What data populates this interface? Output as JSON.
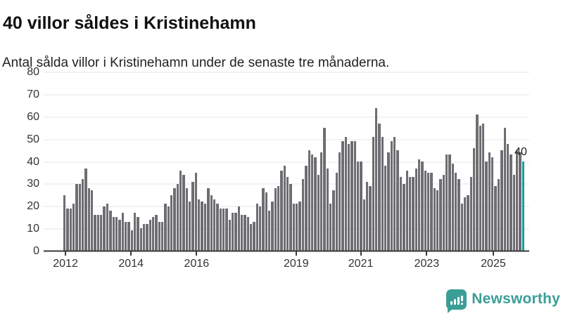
{
  "title": "40 villor såldes i Kristinehamn",
  "subtitle": "Antal sålda villor i Kristinehamn under de senaste tre månaderna.",
  "colors": {
    "bar": "#6d6d72",
    "highlight": "#16a09a",
    "grid": "#e4e4e4",
    "axis": "#3a3a3a",
    "brand": "#3a9e97"
  },
  "branding": {
    "logo_text": "Newsworthy",
    "logo_icon": "bar-chart-speech-bubble-icon"
  },
  "chart_data": {
    "type": "bar",
    "title": "40 villor såldes i Kristinehamn",
    "subtitle": "Antal sålda villor i Kristinehamn under de senaste tre månaderna.",
    "xlabel": "",
    "ylabel": "",
    "ylim": [
      0,
      80
    ],
    "grid": "horizontal",
    "legend": "none",
    "y_ticks": [
      0,
      10,
      20,
      30,
      40,
      50,
      60,
      70,
      80
    ],
    "x_ticks": [
      {
        "label": "2012",
        "pos": 0.045
      },
      {
        "label": "2014",
        "pos": 0.18
      },
      {
        "label": "2016",
        "pos": 0.315
      },
      {
        "label": "2019",
        "pos": 0.52
      },
      {
        "label": "2021",
        "pos": 0.653
      },
      {
        "label": "2023",
        "pos": 0.789
      },
      {
        "label": "2025",
        "pos": 0.926
      }
    ],
    "series_note": "Rolling 3-month count of sold houses, monthly points 2011-12 to 2025, last point highlighted",
    "values": [
      25,
      19,
      19,
      21,
      30,
      30,
      32,
      37,
      28,
      27,
      16,
      16,
      16,
      20,
      21,
      18,
      15,
      15,
      14,
      17,
      13,
      13,
      9,
      17,
      15,
      10,
      12,
      12,
      14,
      15,
      16,
      13,
      13,
      21,
      20,
      25,
      28,
      30,
      36,
      34,
      28,
      22,
      31,
      35,
      23,
      22,
      21,
      28,
      25,
      23,
      21,
      19,
      19,
      19,
      14,
      17,
      17,
      20,
      16,
      16,
      15,
      12,
      13,
      21,
      20,
      28,
      26,
      18,
      22,
      28,
      29,
      36,
      38,
      33,
      30,
      21,
      21,
      22,
      32,
      38,
      45,
      43,
      42,
      34,
      44,
      55,
      37,
      21,
      27,
      35,
      44,
      49,
      51,
      48,
      49,
      49,
      40,
      40,
      23,
      31,
      29,
      51,
      64,
      57,
      51,
      38,
      44,
      49,
      51,
      45,
      33,
      30,
      36,
      33,
      33,
      37,
      41,
      40,
      36,
      35,
      35,
      28,
      27,
      32,
      34,
      43,
      43,
      39,
      35,
      32,
      21,
      24,
      25,
      33,
      46,
      61,
      56,
      57,
      40,
      44,
      42,
      29,
      32,
      45,
      55,
      48,
      43,
      34,
      45,
      44,
      40
    ],
    "highlight_last_value": 40,
    "last_value_label": "40"
  }
}
